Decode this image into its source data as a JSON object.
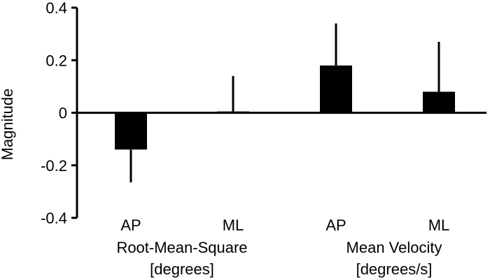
{
  "chart_data": {
    "type": "bar",
    "ylabel": "Magnitude",
    "ylim": [
      -0.4,
      0.4
    ],
    "yticks": [
      0.4,
      0.2,
      0,
      -0.2,
      -0.4
    ],
    "ytick_labels": [
      "0.4",
      "0.2",
      "0",
      "-0.2",
      "-0.4"
    ],
    "categories": [
      "AP",
      "ML",
      "AP",
      "ML"
    ],
    "values": [
      -0.14,
      0.005,
      0.18,
      0.08
    ],
    "error_upper": [
      null,
      0.14,
      0.34,
      0.27
    ],
    "error_lower": [
      -0.265,
      null,
      null,
      null
    ],
    "bar_color": "#000000",
    "groups": [
      {
        "line1": "Root-Mean-Square",
        "line2": "[degrees]"
      },
      {
        "line1": "Mean Velocity",
        "line2": "[degrees/s]"
      }
    ],
    "grid": false
  }
}
